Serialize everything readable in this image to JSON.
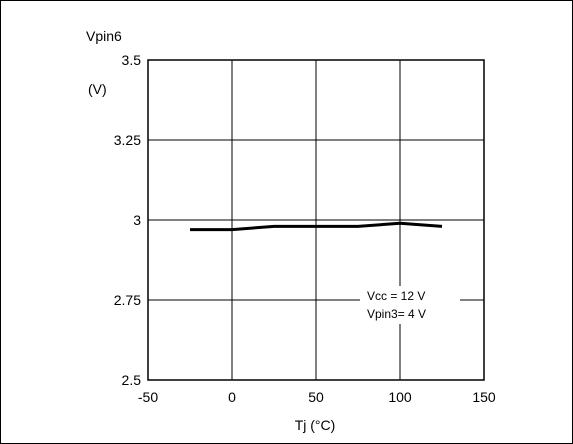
{
  "chart_data": {
    "type": "line",
    "title": "",
    "ylabel": "Vpin6",
    "yunit": "(V)",
    "xlabel": "Tj  (°C)",
    "xlim": [
      -50,
      150
    ],
    "ylim": [
      2.5,
      3.5
    ],
    "x_ticks": [
      -50,
      0,
      50,
      100,
      150
    ],
    "x_tick_labels": [
      "-50",
      "0",
      "50",
      "100",
      "150"
    ],
    "y_ticks": [
      2.5,
      2.75,
      3,
      3.25,
      3.5
    ],
    "y_tick_labels": [
      "2.5",
      "2.75",
      "3",
      "3.25",
      "3.5"
    ],
    "grid": true,
    "annotations": [
      "Vcc = 12 V",
      "Vpin3= 4 V"
    ],
    "series": [
      {
        "x": [
          -25,
          0,
          25,
          50,
          75,
          100,
          125
        ],
        "y": [
          2.97,
          2.97,
          2.98,
          2.98,
          2.98,
          2.99,
          2.98
        ]
      }
    ],
    "colors": {
      "line": "#000000",
      "grid": "#000000",
      "background": "#ffffff"
    }
  }
}
